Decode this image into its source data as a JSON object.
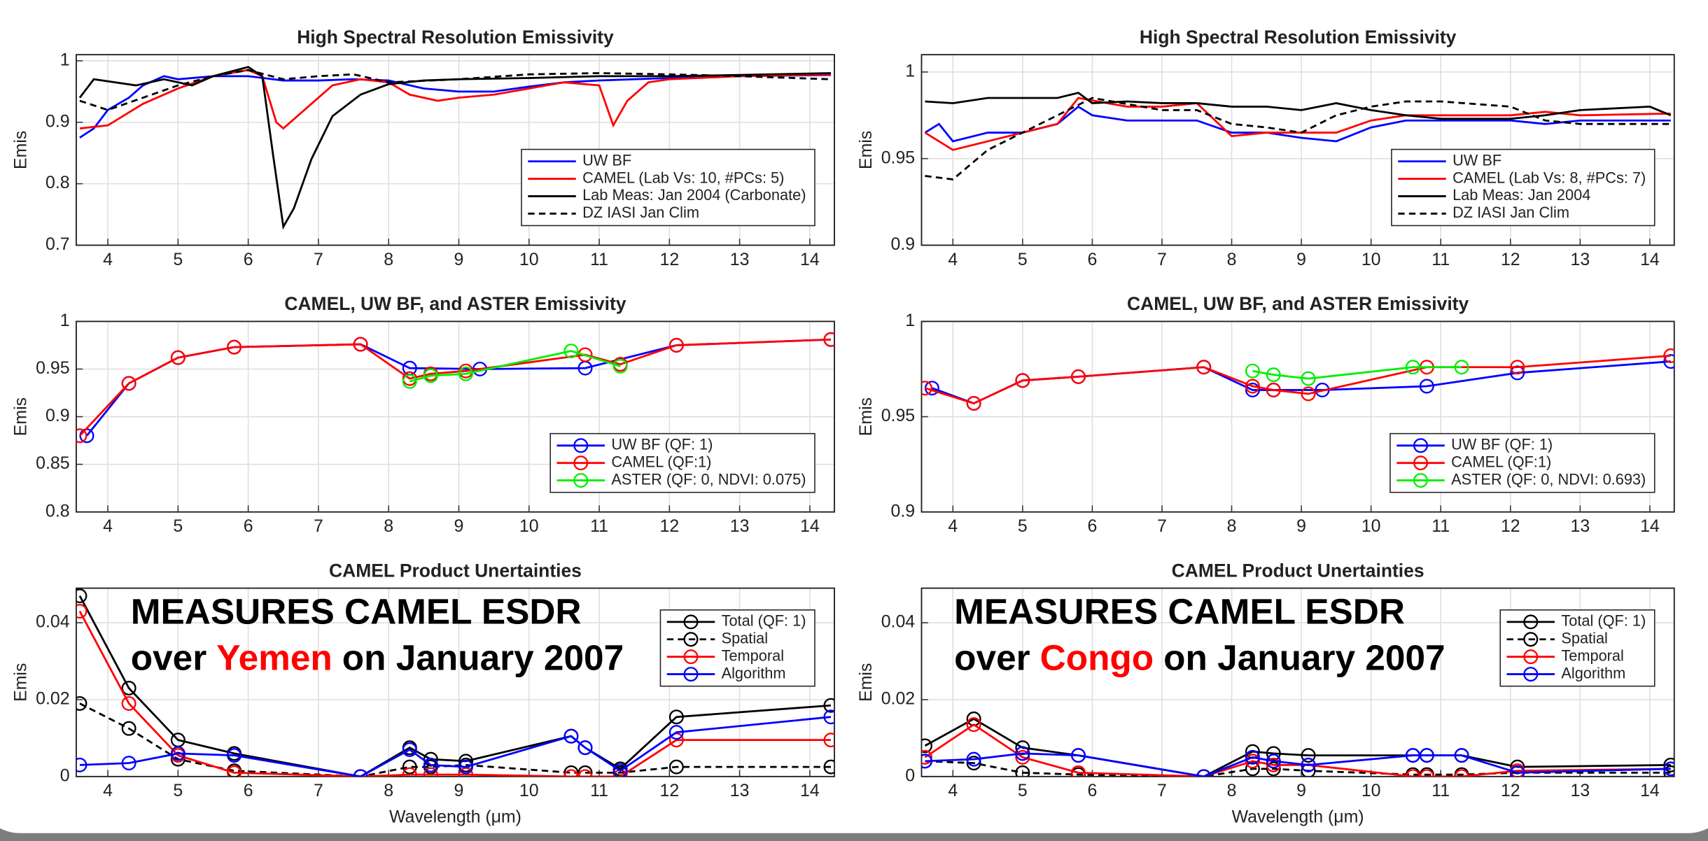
{
  "chart_data": [
    {
      "type": "line",
      "title": "High Spectral Resolution Emissivity",
      "ylabel": "Emis",
      "xlim": [
        3.55,
        14.35
      ],
      "xticks": [
        4,
        5,
        6,
        7,
        8,
        9,
        10,
        11,
        12,
        13,
        14
      ],
      "ylim": [
        0.7,
        1.01
      ],
      "yticks": [
        0.7,
        0.8,
        0.9,
        1
      ],
      "grid": true,
      "legend": "lower right",
      "series": [
        {
          "name": "UW BF",
          "color": "#0000ff",
          "x": [
            3.6,
            3.8,
            4.0,
            4.3,
            4.5,
            4.8,
            5,
            5.5,
            6,
            6.5,
            7,
            7.5,
            8,
            8.5,
            9,
            9.5,
            10,
            10.5,
            11,
            11.5,
            12,
            13,
            14.3
          ],
          "values": [
            0.875,
            0.89,
            0.92,
            0.94,
            0.96,
            0.975,
            0.97,
            0.975,
            0.975,
            0.968,
            0.968,
            0.97,
            0.968,
            0.955,
            0.95,
            0.95,
            0.958,
            0.965,
            0.968,
            0.97,
            0.972,
            0.975,
            0.977
          ]
        },
        {
          "name": "CAMEL (Lab Vs: 10, #PCs: 5)",
          "color": "#ff0000",
          "x": [
            3.6,
            4,
            4.5,
            5,
            5.5,
            6,
            6.2,
            6.4,
            6.5,
            6.8,
            7.2,
            7.6,
            8,
            8.3,
            8.7,
            9,
            9.5,
            10,
            10.5,
            11,
            11.2,
            11.4,
            11.7,
            12,
            13,
            14.3
          ],
          "values": [
            0.89,
            0.895,
            0.93,
            0.955,
            0.975,
            0.985,
            0.975,
            0.9,
            0.89,
            0.92,
            0.96,
            0.97,
            0.965,
            0.945,
            0.935,
            0.94,
            0.945,
            0.955,
            0.965,
            0.96,
            0.895,
            0.935,
            0.965,
            0.97,
            0.975,
            0.978
          ]
        },
        {
          "name": "Lab Meas: Jan 2004 (Carbonate)",
          "color": "#000000",
          "x": [
            3.6,
            3.8,
            4.1,
            4.4,
            4.8,
            5.2,
            5.5,
            6,
            6.2,
            6.35,
            6.5,
            6.65,
            6.9,
            7.2,
            7.6,
            8,
            8.5,
            9,
            10,
            11,
            12,
            13,
            14.3
          ],
          "values": [
            0.94,
            0.97,
            0.965,
            0.96,
            0.97,
            0.96,
            0.975,
            0.99,
            0.975,
            0.85,
            0.73,
            0.76,
            0.84,
            0.91,
            0.945,
            0.962,
            0.968,
            0.97,
            0.972,
            0.975,
            0.975,
            0.977,
            0.98
          ]
        },
        {
          "name": "DZ IASI Jan Clim",
          "color": "#000000",
          "dash": true,
          "x": [
            3.6,
            4,
            4.5,
            5,
            5.5,
            6,
            6.5,
            7,
            7.5,
            8,
            9,
            10,
            11,
            12,
            13,
            14.3
          ],
          "values": [
            0.935,
            0.92,
            0.94,
            0.96,
            0.975,
            0.985,
            0.97,
            0.975,
            0.978,
            0.965,
            0.97,
            0.978,
            0.98,
            0.978,
            0.975,
            0.97
          ]
        }
      ]
    },
    {
      "type": "line",
      "title": "High Spectral Resolution Emissivity",
      "ylabel": "Emis",
      "xlim": [
        3.55,
        14.35
      ],
      "xticks": [
        4,
        5,
        6,
        7,
        8,
        9,
        10,
        11,
        12,
        13,
        14
      ],
      "ylim": [
        0.9,
        1.01
      ],
      "yticks": [
        0.9,
        0.95,
        1
      ],
      "grid": true,
      "legend": "lower right",
      "series": [
        {
          "name": "UW BF",
          "color": "#0000ff",
          "x": [
            3.6,
            3.8,
            4,
            4.5,
            5,
            5.5,
            5.8,
            6,
            6.5,
            7,
            7.5,
            8,
            8.5,
            9,
            9.5,
            10,
            10.5,
            11,
            12,
            12.5,
            13,
            14.3
          ],
          "values": [
            0.965,
            0.97,
            0.96,
            0.965,
            0.965,
            0.97,
            0.98,
            0.975,
            0.972,
            0.972,
            0.972,
            0.965,
            0.965,
            0.962,
            0.96,
            0.968,
            0.972,
            0.972,
            0.972,
            0.97,
            0.972,
            0.972
          ]
        },
        {
          "name": "CAMEL (Lab Vs: 8, #PCs: 7)",
          "color": "#ff0000",
          "x": [
            3.6,
            3.8,
            4,
            4.5,
            5,
            5.5,
            5.8,
            6.5,
            7,
            7.5,
            8,
            8.5,
            9,
            9.5,
            10,
            10.5,
            11,
            12,
            12.5,
            13,
            14.3
          ],
          "values": [
            0.965,
            0.96,
            0.955,
            0.96,
            0.965,
            0.97,
            0.985,
            0.98,
            0.98,
            0.982,
            0.963,
            0.965,
            0.965,
            0.965,
            0.972,
            0.975,
            0.975,
            0.975,
            0.977,
            0.975,
            0.976
          ]
        },
        {
          "name": "Lab Meas: Jan 2004",
          "color": "#000000",
          "x": [
            3.6,
            4,
            4.5,
            5,
            5.5,
            5.8,
            6,
            6.5,
            7,
            7.5,
            8,
            8.5,
            9,
            9.5,
            10,
            10.5,
            11,
            12,
            12.5,
            13,
            14,
            14.3
          ],
          "values": [
            0.983,
            0.982,
            0.985,
            0.985,
            0.985,
            0.988,
            0.982,
            0.983,
            0.982,
            0.982,
            0.98,
            0.98,
            0.978,
            0.982,
            0.978,
            0.975,
            0.973,
            0.973,
            0.975,
            0.978,
            0.98,
            0.975
          ]
        },
        {
          "name": "DZ IASI Jan Clim",
          "color": "#000000",
          "dash": true,
          "x": [
            3.6,
            4,
            4.5,
            5,
            5.5,
            6,
            7,
            7.5,
            8,
            8.5,
            9,
            9.5,
            10,
            10.5,
            11,
            12,
            12.5,
            13,
            14.3
          ],
          "values": [
            0.94,
            0.938,
            0.955,
            0.965,
            0.975,
            0.985,
            0.978,
            0.978,
            0.97,
            0.968,
            0.965,
            0.975,
            0.98,
            0.983,
            0.983,
            0.98,
            0.972,
            0.97,
            0.97
          ]
        }
      ]
    },
    {
      "type": "line",
      "title": "CAMEL, UW BF, and ASTER Emissivity",
      "ylabel": "Emis",
      "xlim": [
        3.55,
        14.35
      ],
      "xticks": [
        4,
        5,
        6,
        7,
        8,
        9,
        10,
        11,
        12,
        13,
        14
      ],
      "ylim": [
        0.8,
        1
      ],
      "yticks": [
        0.8,
        0.85,
        0.9,
        0.95,
        1
      ],
      "grid": true,
      "legend": "lower right",
      "marker": "o",
      "series": [
        {
          "name": "UW BF (QF: 1)",
          "color": "#0000ff",
          "x": [
            3.7,
            4.3,
            5,
            5.8,
            7.6,
            8.3,
            9.3,
            10.8,
            12.1,
            14.3
          ],
          "values": [
            0.88,
            0.935,
            0.962,
            0.973,
            0.976,
            0.951,
            0.95,
            0.951,
            0.975,
            0.981
          ]
        },
        {
          "name": "CAMEL (QF:1)",
          "color": "#ff0000",
          "x": [
            3.6,
            4.3,
            5,
            5.8,
            7.6,
            8.3,
            8.6,
            9.1,
            10.8,
            11.3,
            12.1,
            14.3
          ],
          "values": [
            0.88,
            0.935,
            0.962,
            0.973,
            0.976,
            0.94,
            0.945,
            0.948,
            0.965,
            0.955,
            0.975,
            0.981
          ]
        },
        {
          "name": "ASTER (QF: 0, NDVI: 0.075)",
          "color": "#00ee00",
          "x": [
            8.3,
            8.6,
            9.1,
            10.6,
            11.3
          ],
          "values": [
            0.937,
            0.943,
            0.945,
            0.969,
            0.953
          ]
        }
      ]
    },
    {
      "type": "line",
      "title": "CAMEL, UW BF, and ASTER Emissivity",
      "ylabel": "Emis",
      "xlim": [
        3.55,
        14.35
      ],
      "xticks": [
        4,
        5,
        6,
        7,
        8,
        9,
        10,
        11,
        12,
        13,
        14
      ],
      "ylim": [
        0.9,
        1
      ],
      "yticks": [
        0.9,
        0.95,
        1
      ],
      "grid": true,
      "legend": "lower right",
      "marker": "o",
      "series": [
        {
          "name": "UW BF (QF: 1)",
          "color": "#0000ff",
          "x": [
            3.7,
            4.3,
            5,
            5.8,
            7.6,
            8.3,
            8.6,
            9.3,
            10.8,
            12.1,
            14.3
          ],
          "values": [
            0.965,
            0.957,
            0.969,
            0.971,
            0.976,
            0.964,
            0.964,
            0.964,
            0.966,
            0.973,
            0.979
          ]
        },
        {
          "name": "CAMEL (QF:1)",
          "color": "#ff0000",
          "x": [
            3.6,
            4.3,
            5,
            5.8,
            7.6,
            8.3,
            8.6,
            9.1,
            10.8,
            12.1,
            14.3
          ],
          "values": [
            0.965,
            0.957,
            0.969,
            0.971,
            0.976,
            0.966,
            0.964,
            0.962,
            0.976,
            0.976,
            0.982
          ]
        },
        {
          "name": "ASTER (QF: 0, NDVI: 0.693)",
          "color": "#00ee00",
          "x": [
            8.3,
            8.6,
            9.1,
            10.6,
            11.3
          ],
          "values": [
            0.974,
            0.972,
            0.97,
            0.976,
            0.976
          ]
        }
      ]
    },
    {
      "type": "line",
      "title": "CAMEL Product Unertainties",
      "ylabel": "Emis",
      "xlabel": "Wavelength (μm)",
      "xlim": [
        3.55,
        14.35
      ],
      "xticks": [
        4,
        5,
        6,
        7,
        8,
        9,
        10,
        11,
        12,
        13,
        14
      ],
      "ylim": [
        0,
        0.049
      ],
      "yticks": [
        0,
        0.02,
        0.04
      ],
      "grid": true,
      "legend": "upper right",
      "marker": "o",
      "annotation": {
        "line1": "MEASURES CAMEL ESDR",
        "prefix": "over",
        "place": "Yemen",
        "suffix": "on January 2007"
      },
      "x": [
        3.6,
        4.3,
        5,
        5.8,
        7.6,
        8.3,
        8.6,
        9.1,
        10.6,
        10.8,
        11.3,
        12.1,
        14.3
      ],
      "series": [
        {
          "name": "Total (QF: 1)",
          "color": "#000000",
          "values": [
            0.047,
            0.023,
            0.0095,
            0.006,
            0,
            0.0075,
            0.0045,
            0.004,
            0.0105,
            0.0075,
            0.002,
            0.0155,
            0.0185
          ]
        },
        {
          "name": "Spatial",
          "color": "#000000",
          "dash": true,
          "values": [
            0.019,
            0.0125,
            0.0045,
            0.0015,
            0,
            0.0025,
            0.0025,
            0.003,
            0.001,
            0.001,
            0.001,
            0.0025,
            0.0025
          ]
        },
        {
          "name": "Temporal",
          "color": "#ff0000",
          "values": [
            0.043,
            0.019,
            0.0055,
            0.001,
            0,
            0.0005,
            0.0005,
            0.0005,
            0,
            0,
            0,
            0.0095,
            0.0095
          ]
        },
        {
          "name": "Algorithm",
          "color": "#0000ff",
          "values": [
            0.003,
            0.0035,
            0.006,
            0.0055,
            0,
            0.007,
            0.003,
            0.0025,
            0.0105,
            0.0075,
            0.0015,
            0.0115,
            0.0155
          ]
        }
      ]
    },
    {
      "type": "line",
      "title": "CAMEL Product Unertainties",
      "ylabel": "Emis",
      "xlabel": "Wavelength (μm)",
      "xlim": [
        3.55,
        14.35
      ],
      "xticks": [
        4,
        5,
        6,
        7,
        8,
        9,
        10,
        11,
        12,
        13,
        14
      ],
      "ylim": [
        0,
        0.049
      ],
      "yticks": [
        0,
        0.02,
        0.04
      ],
      "grid": true,
      "legend": "upper right",
      "marker": "o",
      "annotation": {
        "line1": "MEASURES CAMEL ESDR",
        "prefix": "over",
        "place": "Congo",
        "suffix": "on January 2007"
      },
      "x": [
        3.6,
        4.3,
        5,
        5.8,
        7.6,
        8.3,
        8.6,
        9.1,
        10.6,
        10.8,
        11.3,
        12.1,
        14.3
      ],
      "series": [
        {
          "name": "Total (QF: 1)",
          "color": "#000000",
          "values": [
            0.008,
            0.015,
            0.0075,
            0.0055,
            0,
            0.0065,
            0.006,
            0.0055,
            0.0055,
            0.0055,
            0.0055,
            0.0025,
            0.003
          ]
        },
        {
          "name": "Spatial",
          "color": "#000000",
          "dash": true,
          "values": [
            0.004,
            0.0035,
            0.001,
            0.0005,
            0,
            0.002,
            0.002,
            0.0015,
            0.0005,
            0.0005,
            0.0005,
            0.001,
            0.001
          ]
        },
        {
          "name": "Temporal",
          "color": "#ff0000",
          "values": [
            0.005,
            0.0135,
            0.005,
            0.001,
            0,
            0.004,
            0.003,
            0.003,
            0,
            0,
            0,
            0.0015,
            0.002
          ]
        },
        {
          "name": "Algorithm",
          "color": "#0000ff",
          "values": [
            0.004,
            0.0045,
            0.006,
            0.0055,
            0,
            0.005,
            0.004,
            0.003,
            0.0055,
            0.0055,
            0.0055,
            0.001,
            0.002
          ]
        }
      ]
    }
  ]
}
